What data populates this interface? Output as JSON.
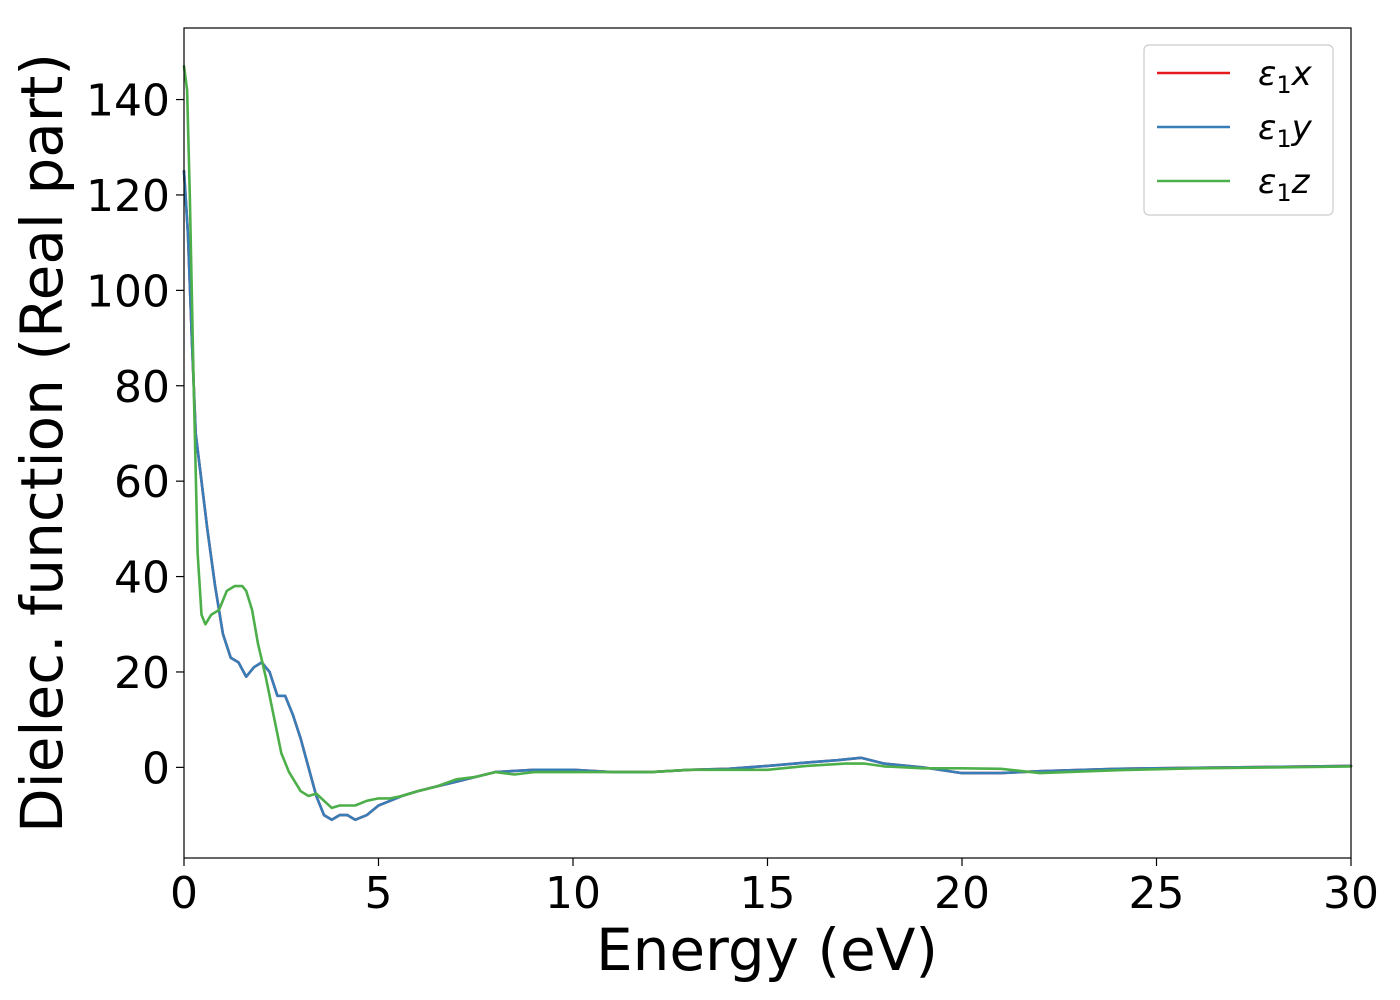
{
  "chart_data": {
    "type": "line",
    "xlabel": "Energy (eV)",
    "ylabel": "Dielec. function (Real part)",
    "xlim": [
      0,
      30
    ],
    "ylim": [
      -19,
      155
    ],
    "x_ticks": [
      0,
      5,
      10,
      15,
      20,
      25,
      30
    ],
    "x_tick_labels": [
      "0",
      "5",
      "10",
      "15",
      "20",
      "25",
      "30"
    ],
    "y_ticks": [
      0,
      20,
      40,
      60,
      80,
      100,
      120,
      140
    ],
    "y_tick_labels": [
      "0",
      "20",
      "40",
      "60",
      "80",
      "100",
      "120",
      "140"
    ],
    "grid": false,
    "legend_position": "top-right",
    "series": [
      {
        "name": "ε₁x",
        "legend_main": "ε",
        "legend_sub": "1",
        "legend_suffix": "x",
        "color": "#e41a1c",
        "x": [
          0,
          0.1,
          0.2,
          0.3,
          0.45,
          0.6,
          0.8,
          1.0,
          1.2,
          1.4,
          1.6,
          1.8,
          2.0,
          2.2,
          2.4,
          2.6,
          2.8,
          3.0,
          3.2,
          3.4,
          3.6,
          3.8,
          4.0,
          4.2,
          4.4,
          4.7,
          5.0,
          5.3,
          5.6,
          6.0,
          6.5,
          7.0,
          7.5,
          8.0,
          9.0,
          10.0,
          11.0,
          12.0,
          13.0,
          14.0,
          15.0,
          16.0,
          16.8,
          17.4,
          18.0,
          19.0,
          20.0,
          21.0,
          22.0,
          24.0,
          26.0,
          28.0,
          30.0
        ],
        "y": [
          125,
          112,
          90,
          70,
          60,
          50,
          38,
          28,
          23,
          22,
          19,
          21,
          22,
          20,
          15,
          15,
          11,
          6,
          0,
          -6,
          -10,
          -11,
          -10,
          -10,
          -11,
          -10,
          -8,
          -7,
          -6,
          -5,
          -4,
          -3,
          -2,
          -1,
          -0.5,
          -0.5,
          -1,
          -1,
          -0.5,
          -0.3,
          0.3,
          1.0,
          1.5,
          2.0,
          0.8,
          0.0,
          -1.2,
          -1.2,
          -0.8,
          -0.3,
          -0.1,
          0.1,
          0.3
        ]
      },
      {
        "name": "ε₁y",
        "legend_main": "ε",
        "legend_sub": "1",
        "legend_suffix": "y",
        "color": "#377eb8",
        "x": [
          0,
          0.1,
          0.2,
          0.3,
          0.45,
          0.6,
          0.8,
          1.0,
          1.2,
          1.4,
          1.6,
          1.8,
          2.0,
          2.2,
          2.4,
          2.6,
          2.8,
          3.0,
          3.2,
          3.4,
          3.6,
          3.8,
          4.0,
          4.2,
          4.4,
          4.7,
          5.0,
          5.3,
          5.6,
          6.0,
          6.5,
          7.0,
          7.5,
          8.0,
          9.0,
          10.0,
          11.0,
          12.0,
          13.0,
          14.0,
          15.0,
          16.0,
          16.8,
          17.4,
          18.0,
          19.0,
          20.0,
          21.0,
          22.0,
          24.0,
          26.0,
          28.0,
          30.0
        ],
        "y": [
          125,
          112,
          90,
          70,
          60,
          50,
          38,
          28,
          23,
          22,
          19,
          21,
          22,
          20,
          15,
          15,
          11,
          6,
          0,
          -6,
          -10,
          -11,
          -10,
          -10,
          -11,
          -10,
          -8,
          -7,
          -6,
          -5,
          -4,
          -3,
          -2,
          -1,
          -0.5,
          -0.5,
          -1,
          -1,
          -0.5,
          -0.3,
          0.3,
          1.0,
          1.5,
          2.0,
          0.8,
          0.0,
          -1.2,
          -1.2,
          -0.8,
          -0.3,
          -0.1,
          0.1,
          0.3
        ]
      },
      {
        "name": "ε₁z",
        "legend_main": "ε",
        "legend_sub": "1",
        "legend_suffix": "z",
        "color": "#4daf4a",
        "x": [
          0,
          0.08,
          0.15,
          0.25,
          0.35,
          0.45,
          0.55,
          0.7,
          0.9,
          1.1,
          1.3,
          1.5,
          1.6,
          1.75,
          1.9,
          2.1,
          2.3,
          2.5,
          2.7,
          3.0,
          3.2,
          3.4,
          3.6,
          3.8,
          4.0,
          4.2,
          4.4,
          4.7,
          5.0,
          5.3,
          5.6,
          6.0,
          6.5,
          7.0,
          7.5,
          8.0,
          8.5,
          9.0,
          10.0,
          11.0,
          12.0,
          13.0,
          14.0,
          15.0,
          16.0,
          17.0,
          17.5,
          18.0,
          19.0,
          20.0,
          21.0,
          22.0,
          24.0,
          26.0,
          28.0,
          30.0
        ],
        "y": [
          147,
          142,
          120,
          80,
          45,
          32,
          30,
          32,
          33,
          37,
          38,
          38,
          37,
          33,
          26,
          19,
          11,
          3,
          -1,
          -5,
          -6,
          -5.5,
          -7,
          -8.5,
          -8,
          -8,
          -8,
          -7,
          -6.5,
          -6.5,
          -6,
          -5,
          -4,
          -2.5,
          -2,
          -1,
          -1.5,
          -1,
          -1,
          -1,
          -1,
          -0.5,
          -0.5,
          -0.5,
          0.3,
          0.8,
          0.8,
          0.2,
          -0.2,
          -0.2,
          -0.3,
          -1.2,
          -0.6,
          -0.2,
          0.0,
          0.2
        ]
      }
    ]
  }
}
